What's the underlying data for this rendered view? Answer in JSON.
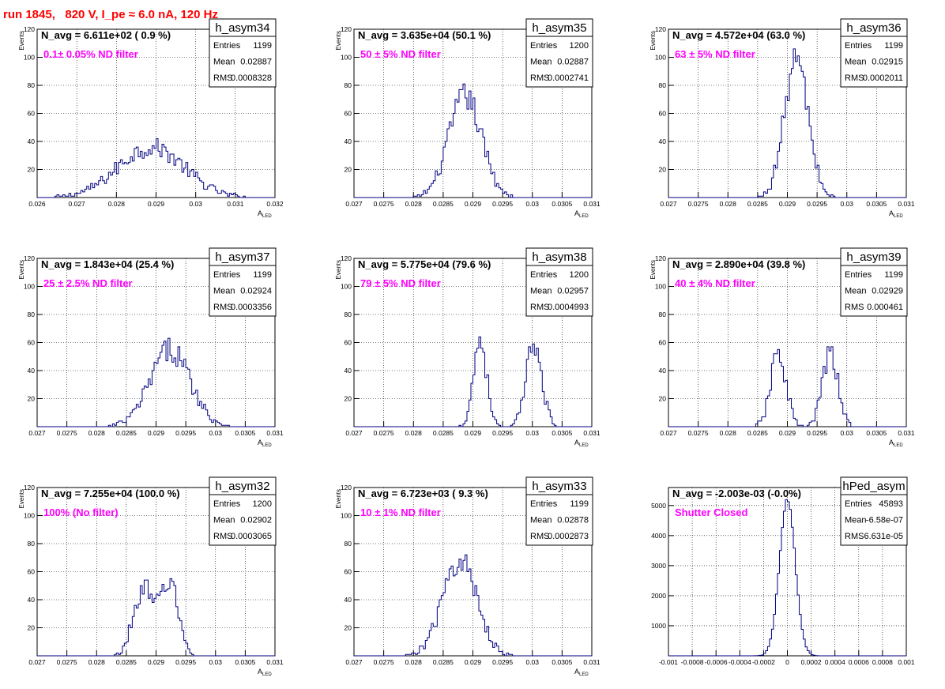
{
  "run_title": "run 1845,   820 V, I_pe ≈ 6.0 nA, 120 Hz",
  "colors": {
    "histogram": "#000080",
    "annotation": "#ff00ff",
    "run_title": "#ff0000",
    "text": "#000000"
  },
  "chart_data": [
    {
      "type": "bar",
      "histogram_name": "h_asym34",
      "title": "N_avg = 6.611e+02 ( 0.9 %)",
      "annotation": "0.1± 0.05% ND filter",
      "ylabel": "Events",
      "xlabel": "A",
      "xlabel_sub": "LED",
      "xlim": [
        0.026,
        0.032
      ],
      "ylim": [
        0,
        120
      ],
      "x_ticks": [
        "0.026",
        "0.027",
        "0.028",
        "0.029",
        "0.03",
        "0.031",
        "0.032"
      ],
      "x_tick_values": [
        0.026,
        0.027,
        0.028,
        0.029,
        0.03,
        0.031,
        0.032
      ],
      "y_ticks": [
        "20",
        "40",
        "60",
        "80",
        "100",
        "120"
      ],
      "y_tick_values": [
        20,
        40,
        60,
        80,
        100,
        120
      ],
      "grid": true,
      "stats": {
        "entries_label": "Entries",
        "entries": "1199",
        "mean_label": "Mean",
        "mean": "0.02887",
        "rms_label": "RMS",
        "rms": "0.0008328"
      },
      "dist": [
        {
          "mu": 0.02887,
          "sigma": 0.00083,
          "peak": 36
        }
      ],
      "bins": 120
    },
    {
      "type": "bar",
      "histogram_name": "h_asym35",
      "title": "N_avg = 3.635e+04 (50.1 %)",
      "annotation": "50 ± 5% ND filter",
      "ylabel": "Events",
      "xlabel": "A",
      "xlabel_sub": "LED",
      "xlim": [
        0.027,
        0.031
      ],
      "ylim": [
        0,
        120
      ],
      "x_ticks": [
        "0.027",
        "0.0275",
        "0.028",
        "0.0285",
        "0.029",
        "0.0295",
        "0.03",
        "0.0305",
        "0.031"
      ],
      "x_tick_values": [
        0.027,
        0.0275,
        0.028,
        0.0285,
        0.029,
        0.0295,
        0.03,
        0.0305,
        0.031
      ],
      "y_ticks": [
        "20",
        "40",
        "60",
        "80",
        "100",
        "120"
      ],
      "y_tick_values": [
        20,
        40,
        60,
        80,
        100,
        120
      ],
      "grid": true,
      "stats": {
        "entries_label": "Entries",
        "entries": "1200",
        "mean_label": "Mean",
        "mean": "0.02887",
        "rms_label": "RMS",
        "rms": "0.0002741"
      },
      "dist": [
        {
          "mu": 0.02887,
          "sigma": 0.000274,
          "peak": 72
        }
      ],
      "bins": 120
    },
    {
      "type": "bar",
      "histogram_name": "h_asym36",
      "title": "N_avg = 4.572e+04 (63.0 %)",
      "annotation": "63 ± 5% ND filter",
      "ylabel": "Events",
      "xlabel": "A",
      "xlabel_sub": "LED",
      "xlim": [
        0.027,
        0.031
      ],
      "ylim": [
        0,
        120
      ],
      "x_ticks": [
        "0.027",
        "0.0275",
        "0.028",
        "0.0285",
        "0.029",
        "0.0295",
        "0.03",
        "0.0305",
        "0.031"
      ],
      "x_tick_values": [
        0.027,
        0.0275,
        0.028,
        0.0285,
        0.029,
        0.0295,
        0.03,
        0.0305,
        0.031
      ],
      "y_ticks": [
        "20",
        "40",
        "60",
        "80",
        "100",
        "120"
      ],
      "y_tick_values": [
        20,
        40,
        60,
        80,
        100,
        120
      ],
      "grid": true,
      "stats": {
        "entries_label": "Entries",
        "entries": "1199",
        "mean_label": "Mean",
        "mean": "0.02915",
        "rms_label": "RMS",
        "rms": "0.0002011"
      },
      "dist": [
        {
          "mu": 0.02915,
          "sigma": 0.000201,
          "peak": 98
        }
      ],
      "bins": 120
    },
    {
      "type": "bar",
      "histogram_name": "h_asym37",
      "title": "N_avg = 1.843e+04 (25.4 %)",
      "annotation": "25 ± 2.5% ND filter",
      "ylabel": "Events",
      "xlabel": "A",
      "xlabel_sub": "LED",
      "xlim": [
        0.027,
        0.031
      ],
      "ylim": [
        0,
        120
      ],
      "x_ticks": [
        "0.027",
        "0.0275",
        "0.028",
        "0.0285",
        "0.029",
        "0.0295",
        "0.03",
        "0.0305",
        "0.031"
      ],
      "x_tick_values": [
        0.027,
        0.0275,
        0.028,
        0.0285,
        0.029,
        0.0295,
        0.03,
        0.0305,
        0.031
      ],
      "y_ticks": [
        "20",
        "40",
        "60",
        "80",
        "100",
        "120"
      ],
      "y_tick_values": [
        20,
        40,
        60,
        80,
        100,
        120
      ],
      "grid": true,
      "stats": {
        "entries_label": "Entries",
        "entries": "1199",
        "mean_label": "Mean",
        "mean": "0.02924",
        "rms_label": "RMS",
        "rms": "0.0003356"
      },
      "dist": [
        {
          "mu": 0.02924,
          "sigma": 0.000336,
          "peak": 55
        }
      ],
      "bins": 120
    },
    {
      "type": "bar",
      "histogram_name": "h_asym38",
      "title": "N_avg = 5.775e+04 (79.6 %)",
      "annotation": "79 ± 5% ND filter",
      "ylabel": "Events",
      "xlabel": "A",
      "xlabel_sub": "LED",
      "xlim": [
        0.027,
        0.031
      ],
      "ylim": [
        0,
        120
      ],
      "x_ticks": [
        "0.027",
        "0.0275",
        "0.028",
        "0.0285",
        "0.029",
        "0.0295",
        "0.03",
        "0.0305",
        "0.031"
      ],
      "x_tick_values": [
        0.027,
        0.0275,
        0.028,
        0.0285,
        0.029,
        0.0295,
        0.03,
        0.0305,
        0.031
      ],
      "y_ticks": [
        "20",
        "40",
        "60",
        "80",
        "100",
        "120"
      ],
      "y_tick_values": [
        20,
        40,
        60,
        80,
        100,
        120
      ],
      "grid": true,
      "stats": {
        "entries_label": "Entries",
        "entries": "1200",
        "mean_label": "Mean",
        "mean": "0.02957",
        "rms_label": "RMS",
        "rms": "0.0004993"
      },
      "dist": [
        {
          "mu": 0.02912,
          "sigma": 0.00011,
          "peak": 63
        },
        {
          "mu": 0.03003,
          "sigma": 0.00013,
          "peak": 60
        }
      ],
      "bins": 120
    },
    {
      "type": "bar",
      "histogram_name": "h_asym39",
      "title": "N_avg = 2.890e+04 (39.8 %)",
      "annotation": "40 ± 4% ND filter",
      "ylabel": "Events",
      "xlabel": "A",
      "xlabel_sub": "LED",
      "xlim": [
        0.027,
        0.031
      ],
      "ylim": [
        0,
        120
      ],
      "x_ticks": [
        "0.027",
        "0.0275",
        "0.028",
        "0.0285",
        "0.029",
        "0.0295",
        "0.03",
        "0.0305",
        "0.031"
      ],
      "x_tick_values": [
        0.027,
        0.0275,
        0.028,
        0.0285,
        0.029,
        0.0295,
        0.03,
        0.0305,
        0.031
      ],
      "y_ticks": [
        "20",
        "40",
        "60",
        "80",
        "100",
        "120"
      ],
      "y_tick_values": [
        20,
        40,
        60,
        80,
        100,
        120
      ],
      "grid": true,
      "stats": {
        "entries_label": "Entries",
        "entries": "1199",
        "mean_label": "Mean",
        "mean": "0.02929",
        "rms_label": "RMS",
        "rms": "0.000461"
      },
      "dist": [
        {
          "mu": 0.02885,
          "sigma": 0.00013,
          "peak": 52
        },
        {
          "mu": 0.02972,
          "sigma": 0.00013,
          "peak": 52
        }
      ],
      "bins": 120
    },
    {
      "type": "bar",
      "histogram_name": "h_asym32",
      "title": "N_avg = 7.255e+04 (100.0 %)",
      "annotation": "100% (No filter)",
      "ylabel": "Events",
      "xlabel": "A",
      "xlabel_sub": "LED",
      "xlim": [
        0.027,
        0.031
      ],
      "ylim": [
        0,
        120
      ],
      "x_ticks": [
        "0.027",
        "0.0275",
        "0.028",
        "0.0285",
        "0.029",
        "0.0295",
        "0.03",
        "0.0305",
        "0.031"
      ],
      "x_tick_values": [
        0.027,
        0.0275,
        0.028,
        0.0285,
        0.029,
        0.0295,
        0.03,
        0.0305,
        0.031
      ],
      "y_ticks": [
        "20",
        "40",
        "60",
        "80",
        "100",
        "120"
      ],
      "y_tick_values": [
        20,
        40,
        60,
        80,
        100,
        120
      ],
      "grid": true,
      "stats": {
        "entries_label": "Entries",
        "entries": "1200",
        "mean_label": "Mean",
        "mean": "0.02902",
        "rms_label": "RMS",
        "rms": "0.0003065"
      },
      "dist": [
        {
          "mu": 0.02878,
          "sigma": 0.00016,
          "peak": 48
        },
        {
          "mu": 0.02922,
          "sigma": 0.00015,
          "peak": 53
        }
      ],
      "bins": 120
    },
    {
      "type": "bar",
      "histogram_name": "h_asym33",
      "title": "N_avg = 6.723e+03 ( 9.3 %)",
      "annotation": "10 ± 1% ND filter",
      "ylabel": "Events",
      "xlabel": "A",
      "xlabel_sub": "LED",
      "xlim": [
        0.027,
        0.031
      ],
      "ylim": [
        0,
        120
      ],
      "x_ticks": [
        "0.027",
        "0.0275",
        "0.028",
        "0.0285",
        "0.029",
        "0.0295",
        "0.03",
        "0.0305",
        "0.031"
      ],
      "x_tick_values": [
        0.027,
        0.0275,
        0.028,
        0.0285,
        0.029,
        0.0295,
        0.03,
        0.0305,
        0.031
      ],
      "y_ticks": [
        "20",
        "40",
        "60",
        "80",
        "100",
        "120"
      ],
      "y_tick_values": [
        20,
        40,
        60,
        80,
        100,
        120
      ],
      "grid": true,
      "stats": {
        "entries_label": "Entries",
        "entries": "1199",
        "mean_label": "Mean",
        "mean": "0.02878",
        "rms_label": "RMS",
        "rms": "0.0002873"
      },
      "dist": [
        {
          "mu": 0.02878,
          "sigma": 0.000287,
          "peak": 68
        }
      ],
      "bins": 120
    },
    {
      "type": "bar",
      "histogram_name": "hPed_asym",
      "title": "N_avg = -2.003e-03 (-0.0%)",
      "annotation": "Shutter Closed",
      "ylabel": "",
      "xlabel": "",
      "xlabel_sub": "",
      "xlim": [
        -0.001,
        0.001
      ],
      "ylim": [
        0,
        5600
      ],
      "x_ticks": [
        "-0.001",
        "-0.0008",
        "-0.0006",
        "-0.0004",
        "-0.0002",
        "0",
        "0.0002",
        "0.0004",
        "0.0006",
        "0.0008",
        "0.001"
      ],
      "x_tick_values": [
        -0.001,
        -0.0008,
        -0.0006,
        -0.0004,
        -0.0002,
        0,
        0.0002,
        0.0004,
        0.0006,
        0.0008,
        0.001
      ],
      "y_ticks": [
        "1000",
        "2000",
        "3000",
        "4000",
        "5000"
      ],
      "y_tick_values": [
        1000,
        2000,
        3000,
        4000,
        5000
      ],
      "grid": true,
      "stats": {
        "entries_label": "Entries",
        "entries": "45893",
        "mean_label": "Mean",
        "mean": "-6.58e-07",
        "rms_label": "RMS",
        "rms": "6.631e-05"
      },
      "dist": [
        {
          "mu": 0.0,
          "sigma": 6.63e-05,
          "peak": 5200
        }
      ],
      "bins": 120
    }
  ]
}
